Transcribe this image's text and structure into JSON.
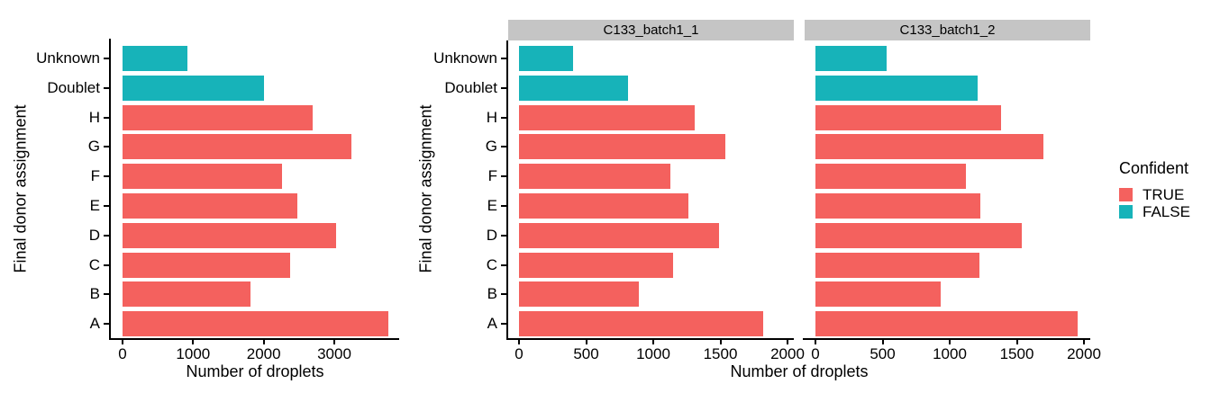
{
  "chart_data": {
    "type": "bar",
    "orientation": "horizontal",
    "title": "",
    "xlabel": "Number of droplets",
    "ylabel": "Final donor assignment",
    "grid": false,
    "background": "#FFFFFF",
    "strip_background": "#C5C5C5",
    "axis_color": "#000000",
    "categories_top_to_bottom": [
      "Unknown",
      "Doublet",
      "H",
      "G",
      "F",
      "E",
      "D",
      "C",
      "B",
      "A"
    ],
    "confident_by_category": [
      "FALSE",
      "FALSE",
      "TRUE",
      "TRUE",
      "TRUE",
      "TRUE",
      "TRUE",
      "TRUE",
      "TRUE",
      "TRUE"
    ],
    "legend": {
      "title": "Confident",
      "position": "right",
      "entries": [
        {
          "label": "TRUE",
          "color": "#F4615E"
        },
        {
          "label": "FALSE",
          "color": "#17B3B9"
        }
      ]
    },
    "panels": [
      {
        "facet_label": "",
        "xticks": [
          0,
          1000,
          2000,
          3000
        ],
        "xlim": [
          0,
          3920
        ],
        "values": [
          920,
          2010,
          2690,
          3240,
          2260,
          2480,
          3030,
          2370,
          1810,
          3770
        ]
      },
      {
        "facet_label": "C133_batch1_1",
        "xticks": [
          0,
          500,
          1000,
          1500,
          2000
        ],
        "xlim": [
          0,
          2050
        ],
        "values": [
          400,
          810,
          1310,
          1540,
          1130,
          1260,
          1490,
          1150,
          890,
          1820
        ]
      },
      {
        "facet_label": "C133_batch1_2",
        "xticks": [
          0,
          500,
          1000,
          1500,
          2000
        ],
        "xlim": [
          0,
          2050
        ],
        "values": [
          530,
          1210,
          1380,
          1700,
          1120,
          1230,
          1540,
          1220,
          930,
          1950
        ]
      }
    ]
  }
}
